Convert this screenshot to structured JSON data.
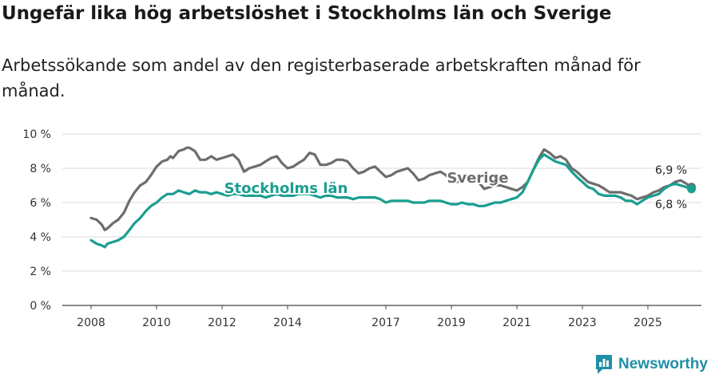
{
  "header": {
    "title": "Ungefär lika hög arbetslöshet i Stockholms län och Sverige",
    "subtitle": "Arbetssökande som andel av den registerbaserade arbetskraften månad för månad."
  },
  "brand": {
    "name": "Newsworthy",
    "icon": "bar-chart-icon",
    "color": "#1f8fa6"
  },
  "chart_data": {
    "type": "line",
    "title": "Ungefär lika hög arbetslöshet i Stockholms län och Sverige",
    "subtitle": "Arbetssökande som andel av den registerbaserade arbetskraften månad för månad.",
    "xlabel": "",
    "ylabel": "",
    "xlim": [
      2008,
      2026.4
    ],
    "ylim": [
      0,
      10
    ],
    "grid": true,
    "y_ticks": [
      0,
      2,
      4,
      6,
      8,
      10
    ],
    "y_tick_labels": [
      "0 %",
      "2 %",
      "4 %",
      "6 %",
      "8 %",
      "10 %"
    ],
    "x_ticks": [
      2008,
      2010,
      2012,
      2014,
      2017,
      2019,
      2021,
      2023,
      2025
    ],
    "x_tick_labels": [
      "2008",
      "2010",
      "2012",
      "2014",
      "2017",
      "2019",
      "2021",
      "2023",
      "2025"
    ],
    "series": [
      {
        "name": "Sverige",
        "label": "Sverige",
        "color": "#6d6d6d",
        "end_label": "6,9 %",
        "points": [
          [
            2008.0,
            5.1
          ],
          [
            2008.17,
            5.0
          ],
          [
            2008.33,
            4.7
          ],
          [
            2008.42,
            4.4
          ],
          [
            2008.5,
            4.5
          ],
          [
            2008.67,
            4.8
          ],
          [
            2008.83,
            5.0
          ],
          [
            2009.0,
            5.4
          ],
          [
            2009.17,
            6.1
          ],
          [
            2009.33,
            6.6
          ],
          [
            2009.5,
            7.0
          ],
          [
            2009.67,
            7.2
          ],
          [
            2009.83,
            7.6
          ],
          [
            2010.0,
            8.1
          ],
          [
            2010.17,
            8.4
          ],
          [
            2010.33,
            8.5
          ],
          [
            2010.42,
            8.7
          ],
          [
            2010.5,
            8.6
          ],
          [
            2010.67,
            9.0
          ],
          [
            2010.83,
            9.1
          ],
          [
            2010.92,
            9.2
          ],
          [
            2011.0,
            9.2
          ],
          [
            2011.17,
            9.0
          ],
          [
            2011.33,
            8.5
          ],
          [
            2011.5,
            8.5
          ],
          [
            2011.67,
            8.7
          ],
          [
            2011.83,
            8.5
          ],
          [
            2012.0,
            8.6
          ],
          [
            2012.17,
            8.7
          ],
          [
            2012.33,
            8.8
          ],
          [
            2012.5,
            8.5
          ],
          [
            2012.67,
            7.8
          ],
          [
            2012.83,
            8.0
          ],
          [
            2013.0,
            8.1
          ],
          [
            2013.17,
            8.2
          ],
          [
            2013.33,
            8.4
          ],
          [
            2013.5,
            8.6
          ],
          [
            2013.67,
            8.7
          ],
          [
            2013.83,
            8.3
          ],
          [
            2014.0,
            8.0
          ],
          [
            2014.17,
            8.1
          ],
          [
            2014.33,
            8.3
          ],
          [
            2014.5,
            8.5
          ],
          [
            2014.67,
            8.9
          ],
          [
            2014.83,
            8.8
          ],
          [
            2015.0,
            8.2
          ],
          [
            2015.17,
            8.2
          ],
          [
            2015.33,
            8.3
          ],
          [
            2015.5,
            8.5
          ],
          [
            2015.67,
            8.5
          ],
          [
            2015.83,
            8.4
          ],
          [
            2016.0,
            8.0
          ],
          [
            2016.17,
            7.7
          ],
          [
            2016.33,
            7.8
          ],
          [
            2016.5,
            8.0
          ],
          [
            2016.67,
            8.1
          ],
          [
            2016.83,
            7.8
          ],
          [
            2017.0,
            7.5
          ],
          [
            2017.17,
            7.6
          ],
          [
            2017.33,
            7.8
          ],
          [
            2017.5,
            7.9
          ],
          [
            2017.67,
            8.0
          ],
          [
            2017.83,
            7.7
          ],
          [
            2018.0,
            7.3
          ],
          [
            2018.17,
            7.4
          ],
          [
            2018.33,
            7.6
          ],
          [
            2018.5,
            7.7
          ],
          [
            2018.67,
            7.8
          ],
          [
            2018.83,
            7.6
          ],
          [
            2019.0,
            7.3
          ],
          [
            2019.17,
            7.2
          ],
          [
            2019.33,
            7.3
          ],
          [
            2019.5,
            7.5
          ],
          [
            2019.67,
            7.4
          ],
          [
            2019.83,
            7.2
          ],
          [
            2020.0,
            6.8
          ],
          [
            2020.17,
            6.9
          ],
          [
            2020.33,
            7.0
          ],
          [
            2020.5,
            7.0
          ],
          [
            2020.67,
            6.9
          ],
          [
            2020.83,
            6.8
          ],
          [
            2021.0,
            6.7
          ],
          [
            2021.17,
            6.9
          ],
          [
            2021.33,
            7.2
          ],
          [
            2021.5,
            7.9
          ],
          [
            2021.67,
            8.6
          ],
          [
            2021.83,
            9.1
          ],
          [
            2022.0,
            8.9
          ],
          [
            2022.17,
            8.6
          ],
          [
            2022.33,
            8.7
          ],
          [
            2022.5,
            8.5
          ],
          [
            2022.67,
            8.0
          ],
          [
            2022.83,
            7.8
          ],
          [
            2023.0,
            7.5
          ],
          [
            2023.17,
            7.2
          ],
          [
            2023.33,
            7.1
          ],
          [
            2023.5,
            7.0
          ],
          [
            2023.67,
            6.8
          ],
          [
            2023.83,
            6.6
          ],
          [
            2024.0,
            6.6
          ],
          [
            2024.17,
            6.6
          ],
          [
            2024.33,
            6.5
          ],
          [
            2024.5,
            6.4
          ],
          [
            2024.67,
            6.2
          ],
          [
            2024.83,
            6.3
          ],
          [
            2025.0,
            6.4
          ],
          [
            2025.17,
            6.6
          ],
          [
            2025.33,
            6.7
          ],
          [
            2025.5,
            6.9
          ],
          [
            2025.67,
            7.0
          ],
          [
            2025.83,
            7.2
          ],
          [
            2026.0,
            7.3
          ],
          [
            2026.17,
            7.1
          ],
          [
            2026.33,
            6.9
          ]
        ]
      },
      {
        "name": "Stockholms län",
        "label": "Stockholms län",
        "color": "#1a9e91",
        "end_label": "6,8 %",
        "points": [
          [
            2008.0,
            3.8
          ],
          [
            2008.17,
            3.6
          ],
          [
            2008.33,
            3.5
          ],
          [
            2008.42,
            3.4
          ],
          [
            2008.5,
            3.6
          ],
          [
            2008.67,
            3.7
          ],
          [
            2008.83,
            3.8
          ],
          [
            2009.0,
            4.0
          ],
          [
            2009.17,
            4.4
          ],
          [
            2009.33,
            4.8
          ],
          [
            2009.5,
            5.1
          ],
          [
            2009.67,
            5.5
          ],
          [
            2009.83,
            5.8
          ],
          [
            2010.0,
            6.0
          ],
          [
            2010.17,
            6.3
          ],
          [
            2010.33,
            6.5
          ],
          [
            2010.5,
            6.5
          ],
          [
            2010.67,
            6.7
          ],
          [
            2010.83,
            6.6
          ],
          [
            2011.0,
            6.5
          ],
          [
            2011.17,
            6.7
          ],
          [
            2011.33,
            6.6
          ],
          [
            2011.5,
            6.6
          ],
          [
            2011.67,
            6.5
          ],
          [
            2011.83,
            6.6
          ],
          [
            2012.0,
            6.5
          ],
          [
            2012.17,
            6.4
          ],
          [
            2012.33,
            6.5
          ],
          [
            2012.5,
            6.5
          ],
          [
            2012.67,
            6.4
          ],
          [
            2012.83,
            6.4
          ],
          [
            2013.0,
            6.4
          ],
          [
            2013.17,
            6.4
          ],
          [
            2013.33,
            6.3
          ],
          [
            2013.5,
            6.4
          ],
          [
            2013.67,
            6.5
          ],
          [
            2013.83,
            6.4
          ],
          [
            2014.0,
            6.4
          ],
          [
            2014.17,
            6.4
          ],
          [
            2014.33,
            6.5
          ],
          [
            2014.5,
            6.5
          ],
          [
            2014.67,
            6.5
          ],
          [
            2014.83,
            6.4
          ],
          [
            2015.0,
            6.3
          ],
          [
            2015.17,
            6.4
          ],
          [
            2015.33,
            6.4
          ],
          [
            2015.5,
            6.3
          ],
          [
            2015.67,
            6.3
          ],
          [
            2015.83,
            6.3
          ],
          [
            2016.0,
            6.2
          ],
          [
            2016.17,
            6.3
          ],
          [
            2016.33,
            6.3
          ],
          [
            2016.5,
            6.3
          ],
          [
            2016.67,
            6.3
          ],
          [
            2016.83,
            6.2
          ],
          [
            2017.0,
            6.0
          ],
          [
            2017.17,
            6.1
          ],
          [
            2017.33,
            6.1
          ],
          [
            2017.5,
            6.1
          ],
          [
            2017.67,
            6.1
          ],
          [
            2017.83,
            6.0
          ],
          [
            2018.0,
            6.0
          ],
          [
            2018.17,
            6.0
          ],
          [
            2018.33,
            6.1
          ],
          [
            2018.5,
            6.1
          ],
          [
            2018.67,
            6.1
          ],
          [
            2018.83,
            6.0
          ],
          [
            2019.0,
            5.9
          ],
          [
            2019.17,
            5.9
          ],
          [
            2019.33,
            6.0
          ],
          [
            2019.5,
            5.9
          ],
          [
            2019.67,
            5.9
          ],
          [
            2019.83,
            5.8
          ],
          [
            2020.0,
            5.8
          ],
          [
            2020.17,
            5.9
          ],
          [
            2020.33,
            6.0
          ],
          [
            2020.5,
            6.0
          ],
          [
            2020.67,
            6.1
          ],
          [
            2020.83,
            6.2
          ],
          [
            2021.0,
            6.3
          ],
          [
            2021.17,
            6.6
          ],
          [
            2021.33,
            7.2
          ],
          [
            2021.5,
            7.9
          ],
          [
            2021.67,
            8.5
          ],
          [
            2021.83,
            8.8
          ],
          [
            2022.0,
            8.6
          ],
          [
            2022.17,
            8.4
          ],
          [
            2022.33,
            8.3
          ],
          [
            2022.5,
            8.2
          ],
          [
            2022.67,
            7.8
          ],
          [
            2022.83,
            7.5
          ],
          [
            2023.0,
            7.2
          ],
          [
            2023.17,
            6.9
          ],
          [
            2023.33,
            6.8
          ],
          [
            2023.5,
            6.5
          ],
          [
            2023.67,
            6.4
          ],
          [
            2023.83,
            6.4
          ],
          [
            2024.0,
            6.4
          ],
          [
            2024.17,
            6.3
          ],
          [
            2024.33,
            6.1
          ],
          [
            2024.5,
            6.1
          ],
          [
            2024.67,
            5.9
          ],
          [
            2024.83,
            6.1
          ],
          [
            2025.0,
            6.3
          ],
          [
            2025.17,
            6.4
          ],
          [
            2025.33,
            6.5
          ],
          [
            2025.5,
            6.8
          ],
          [
            2025.67,
            7.0
          ],
          [
            2025.83,
            7.1
          ],
          [
            2026.0,
            7.0
          ],
          [
            2026.17,
            6.9
          ],
          [
            2026.33,
            6.8
          ]
        ]
      }
    ]
  }
}
